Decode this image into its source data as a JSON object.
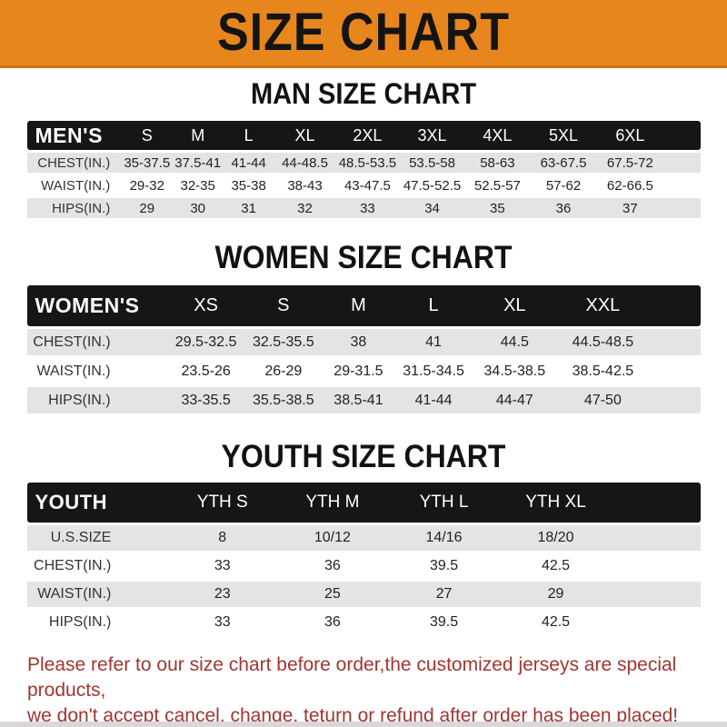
{
  "banner": {
    "title": "SIZE CHART"
  },
  "chart_data": [
    {
      "type": "table",
      "title": "MAN SIZE CHART",
      "header": [
        "MEN'S",
        "S",
        "M",
        "L",
        "XL",
        "2XL",
        "3XL",
        "4XL",
        "5XL",
        "6XL"
      ],
      "rows": [
        [
          "CHEST(IN.)",
          "35-37.5",
          "37.5-41",
          "41-44",
          "44-48.5",
          "48.5-53.5",
          "53.5-58",
          "58-63",
          "63-67.5",
          "67.5-72"
        ],
        [
          "WAIST(IN.)",
          "29-32",
          "32-35",
          "35-38",
          "38-43",
          "43-47.5",
          "47.5-52.5",
          "52.5-57",
          "57-62",
          "62-66.5"
        ],
        [
          "HIPS(IN.)",
          "29",
          "30",
          "31",
          "32",
          "33",
          "34",
          "35",
          "36",
          "37"
        ]
      ]
    },
    {
      "type": "table",
      "title": "WOMEN SIZE CHART",
      "header": [
        "WOMEN'S",
        "XS",
        "S",
        "M",
        "L",
        "XL",
        "XXL"
      ],
      "rows": [
        [
          "CHEST(IN.)",
          "29.5-32.5",
          "32.5-35.5",
          "38",
          "41",
          "44.5",
          "44.5-48.5"
        ],
        [
          "WAIST(IN.)",
          "23.5-26",
          "26-29",
          "29-31.5",
          "31.5-34.5",
          "34.5-38.5",
          "38.5-42.5"
        ],
        [
          "HIPS(IN.)",
          "33-35.5",
          "35.5-38.5",
          "38.5-41",
          "41-44",
          "44-47",
          "47-50"
        ]
      ]
    },
    {
      "type": "table",
      "title": "YOUTH SIZE CHART",
      "header": [
        "YOUTH",
        "YTH S",
        "YTH M",
        "YTH L",
        "YTH XL"
      ],
      "rows": [
        [
          "U.S.SIZE",
          "8",
          "10/12",
          "14/16",
          "18/20"
        ],
        [
          "CHEST(IN.)",
          "33",
          "36",
          "39.5",
          "42.5"
        ],
        [
          "WAIST(IN.)",
          "23",
          "25",
          "27",
          "29"
        ],
        [
          "HIPS(IN.)",
          "33",
          "36",
          "39.5",
          "42.5"
        ]
      ]
    }
  ],
  "footer": {
    "line1": "Please refer to our size chart before order,the customized jerseys are special products,",
    "line2": "we don't accept cancel, change, teturn or refund after order has been placed!"
  },
  "colors": {
    "banner_orange": "#E8861E",
    "table_header_black": "#161616",
    "row_gray": "#E4E4E4",
    "note_red": "#A23530"
  }
}
